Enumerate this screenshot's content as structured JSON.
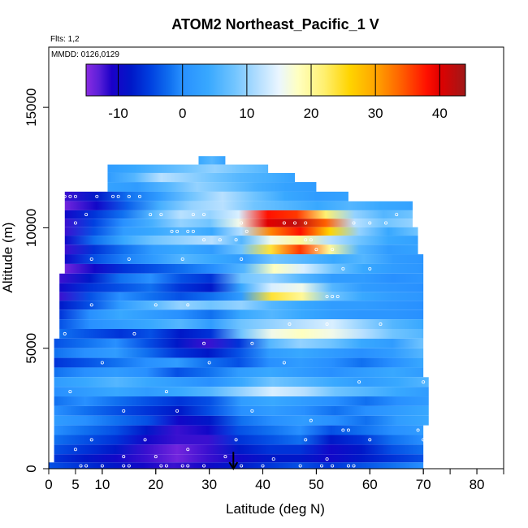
{
  "chart_data": {
    "type": "heatmap",
    "title": "ATOM2 Northeast_Pacific_1 V",
    "flights_label": "Flts: 1,2",
    "mmdd_label": "MMDD: 0126,0129",
    "xlabel": "Latitude (deg N)",
    "ylabel": "Altitude (m)",
    "xlim": [
      0,
      85
    ],
    "ylim": [
      0,
      17500
    ],
    "x_ticks": [
      0,
      5,
      10,
      20,
      30,
      40,
      50,
      60,
      70,
      80
    ],
    "x_ticks_minor": [
      0,
      10,
      20,
      30,
      40,
      50,
      60,
      70,
      75,
      80,
      85
    ],
    "y_ticks": [
      0,
      5000,
      10000,
      15000
    ],
    "colorbar": {
      "range": [
        -15,
        44
      ],
      "ticks": [
        -10,
        0,
        10,
        20,
        30,
        40
      ],
      "stops": [
        {
          "v": -15,
          "c": "#8a2be2"
        },
        {
          "v": -13,
          "c": "#5a1fd8"
        },
        {
          "v": -11,
          "c": "#1a00c8"
        },
        {
          "v": -8,
          "c": "#0018c8"
        },
        {
          "v": -5,
          "c": "#0040e0"
        },
        {
          "v": -2,
          "c": "#1070f0"
        },
        {
          "v": 0,
          "c": "#2890ff"
        },
        {
          "v": 4,
          "c": "#38a8ff"
        },
        {
          "v": 8,
          "c": "#70c4ff"
        },
        {
          "v": 12,
          "c": "#b8e0ff"
        },
        {
          "v": 15,
          "c": "#eaf6ff"
        },
        {
          "v": 18,
          "c": "#ffffc0"
        },
        {
          "v": 22,
          "c": "#fff070"
        },
        {
          "v": 26,
          "c": "#ffd400"
        },
        {
          "v": 30,
          "c": "#ffa500"
        },
        {
          "v": 34,
          "c": "#ff6000"
        },
        {
          "v": 38,
          "c": "#ff1000"
        },
        {
          "v": 40,
          "c": "#e00000"
        },
        {
          "v": 44,
          "c": "#a01818"
        }
      ]
    },
    "layers": [
      {
        "alt": 12800,
        "lat0": 28,
        "lat1": 33,
        "v": [
          4,
          6,
          3
        ]
      },
      {
        "alt": 12450,
        "lat0": 11,
        "lat1": 41,
        "v": [
          2,
          4,
          6,
          8,
          10,
          8,
          6
        ]
      },
      {
        "alt": 12100,
        "lat0": 11,
        "lat1": 46,
        "v": [
          2,
          6,
          12,
          10,
          8,
          6,
          5,
          3
        ]
      },
      {
        "alt": 11700,
        "lat0": 11,
        "lat1": 50,
        "v": [
          3,
          2,
          6,
          10,
          8,
          5,
          3,
          2
        ]
      },
      {
        "alt": 11300,
        "lat0": 3,
        "lat1": 56,
        "v": [
          -12,
          -8,
          -2,
          2,
          8,
          12,
          8,
          4,
          2,
          3
        ]
      },
      {
        "alt": 10900,
        "lat0": 3,
        "lat1": 68,
        "v": [
          -14,
          -10,
          -3,
          5,
          10,
          12,
          8,
          6,
          4,
          6,
          4,
          3
        ]
      },
      {
        "alt": 10550,
        "lat0": 3,
        "lat1": 68,
        "v": [
          -10,
          -6,
          -2,
          6,
          12,
          10,
          14,
          38,
          36,
          22,
          10,
          6,
          8
        ]
      },
      {
        "alt": 10200,
        "lat0": 3,
        "lat1": 68,
        "v": [
          -12,
          -5,
          0,
          5,
          10,
          8,
          16,
          40,
          42,
          34,
          12,
          8,
          10
        ]
      },
      {
        "alt": 9850,
        "lat0": 3,
        "lat1": 69,
        "v": [
          -12,
          -4,
          2,
          4,
          6,
          4,
          12,
          32,
          38,
          26,
          10,
          4,
          8
        ]
      },
      {
        "alt": 9500,
        "lat0": 3,
        "lat1": 69,
        "v": [
          -10,
          -2,
          4,
          8,
          10,
          12,
          6,
          16,
          20,
          12,
          8,
          4,
          3
        ]
      },
      {
        "alt": 9100,
        "lat0": 3,
        "lat1": 69,
        "v": [
          -12,
          -6,
          -2,
          2,
          4,
          2,
          8,
          24,
          36,
          20,
          6,
          2,
          3
        ]
      },
      {
        "alt": 8700,
        "lat0": 3,
        "lat1": 70,
        "v": [
          -10,
          -4,
          -1,
          2,
          6,
          4,
          2,
          8,
          6,
          4,
          6,
          2,
          1
        ]
      },
      {
        "alt": 8300,
        "lat0": 3,
        "lat1": 70,
        "v": [
          -14,
          -10,
          -6,
          -4,
          -2,
          0,
          6,
          18,
          14,
          8,
          4,
          2,
          1
        ]
      },
      {
        "alt": 7900,
        "lat0": 2,
        "lat1": 70,
        "v": [
          -12,
          -8,
          -2,
          0,
          -4,
          -6,
          8,
          10,
          6,
          2,
          2,
          0,
          1
        ]
      },
      {
        "alt": 7500,
        "lat0": 2,
        "lat1": 70,
        "v": [
          -10,
          -6,
          -4,
          -2,
          -6,
          -8,
          4,
          14,
          16,
          6,
          2,
          1,
          0
        ]
      },
      {
        "alt": 7150,
        "lat0": 2,
        "lat1": 70,
        "v": [
          -12,
          -4,
          0,
          -2,
          -4,
          -2,
          2,
          24,
          20,
          8,
          4,
          2,
          1
        ]
      },
      {
        "alt": 6800,
        "lat0": 2,
        "lat1": 70,
        "v": [
          -8,
          -4,
          2,
          6,
          10,
          8,
          10,
          6,
          4,
          2,
          2,
          1,
          0
        ]
      },
      {
        "alt": 6400,
        "lat0": 2,
        "lat1": 70,
        "v": [
          -6,
          0,
          4,
          2,
          0,
          -2,
          4,
          6,
          4,
          2,
          1,
          1,
          0
        ]
      },
      {
        "alt": 6000,
        "lat0": 2,
        "lat1": 70,
        "v": [
          -4,
          0,
          2,
          4,
          6,
          2,
          8,
          10,
          12,
          14,
          10,
          6,
          4
        ]
      },
      {
        "alt": 5600,
        "lat0": 2,
        "lat1": 70,
        "v": [
          -2,
          -4,
          -6,
          -4,
          -8,
          -6,
          8,
          16,
          18,
          16,
          12,
          8,
          6
        ]
      },
      {
        "alt": 5200,
        "lat0": 1,
        "lat1": 70,
        "v": [
          -4,
          -2,
          0,
          -4,
          -8,
          -12,
          -6,
          6,
          10,
          8,
          4,
          2,
          8
        ]
      },
      {
        "alt": 4800,
        "lat0": 1,
        "lat1": 70,
        "v": [
          -2,
          0,
          2,
          -2,
          -6,
          -8,
          -4,
          2,
          4,
          2,
          0,
          2,
          6
        ]
      },
      {
        "alt": 4400,
        "lat0": 1,
        "lat1": 70,
        "v": [
          -6,
          -4,
          -2,
          0,
          2,
          -2,
          -4,
          0,
          2,
          0,
          -2,
          0,
          4
        ]
      },
      {
        "alt": 4000,
        "lat0": 1,
        "lat1": 70,
        "v": [
          -2,
          0,
          2,
          0,
          -4,
          -2,
          2,
          4,
          2,
          0,
          2,
          4,
          2
        ]
      },
      {
        "alt": 3600,
        "lat0": 1,
        "lat1": 71,
        "v": [
          2,
          4,
          6,
          4,
          2,
          0,
          4,
          8,
          6,
          4,
          2,
          4,
          6
        ]
      },
      {
        "alt": 3200,
        "lat0": 1,
        "lat1": 71,
        "v": [
          0,
          2,
          4,
          2,
          4,
          6,
          10,
          14,
          12,
          8,
          6,
          4,
          2
        ]
      },
      {
        "alt": 2800,
        "lat0": 1,
        "lat1": 71,
        "v": [
          -2,
          0,
          -2,
          -4,
          -6,
          -4,
          2,
          4,
          2,
          0,
          -2,
          0,
          2
        ]
      },
      {
        "alt": 2400,
        "lat0": 1,
        "lat1": 71,
        "v": [
          0,
          -2,
          -4,
          -6,
          -8,
          -4,
          0,
          2,
          0,
          -2,
          0,
          2,
          4
        ]
      },
      {
        "alt": 2000,
        "lat0": 1,
        "lat1": 71,
        "v": [
          2,
          0,
          -2,
          -4,
          -10,
          -8,
          -2,
          0,
          2,
          0,
          -2,
          2,
          4
        ]
      },
      {
        "alt": 1600,
        "lat0": 1,
        "lat1": 70,
        "v": [
          0,
          -2,
          -4,
          -8,
          -12,
          -10,
          -4,
          -2,
          0,
          -4,
          -2,
          0,
          2
        ]
      },
      {
        "alt": 1200,
        "lat0": 1,
        "lat1": 70,
        "v": [
          -2,
          -4,
          -6,
          -10,
          -12,
          -12,
          -6,
          -4,
          -2,
          -8,
          -6,
          -2,
          0
        ]
      },
      {
        "alt": 800,
        "lat0": 1,
        "lat1": 70,
        "v": [
          -4,
          -6,
          -8,
          -12,
          -14,
          -12,
          -8,
          -6,
          -6,
          -10,
          -8,
          -4,
          -2
        ]
      },
      {
        "alt": 400,
        "lat0": 1,
        "lat1": 70,
        "v": [
          -6,
          -8,
          -10,
          -12,
          -14,
          -12,
          -10,
          -8,
          -8,
          -10,
          -8,
          -6,
          -4
        ]
      },
      {
        "alt": 120,
        "lat0": 0,
        "lat1": 70,
        "v": [
          -4,
          -6,
          -8,
          -10,
          -12,
          -10,
          -8,
          -6,
          -4,
          -6,
          -4,
          -2,
          0
        ]
      }
    ],
    "sample_points": [
      [
        3,
        11300
      ],
      [
        4,
        11300
      ],
      [
        5,
        11300
      ],
      [
        9,
        11300
      ],
      [
        12,
        11300
      ],
      [
        13,
        11300
      ],
      [
        15,
        11300
      ],
      [
        17,
        11300
      ],
      [
        5,
        10200
      ],
      [
        7,
        10550
      ],
      [
        19,
        10550
      ],
      [
        21,
        10550
      ],
      [
        27,
        10550
      ],
      [
        29,
        10550
      ],
      [
        36,
        10200
      ],
      [
        37,
        9850
      ],
      [
        44,
        10200
      ],
      [
        46,
        10200
      ],
      [
        48,
        10200
      ],
      [
        57,
        10200
      ],
      [
        60,
        10200
      ],
      [
        63,
        10200
      ],
      [
        65,
        10550
      ],
      [
        23,
        9850
      ],
      [
        24,
        9850
      ],
      [
        26,
        9850
      ],
      [
        27,
        9850
      ],
      [
        29,
        9500
      ],
      [
        32,
        9500
      ],
      [
        35,
        9500
      ],
      [
        48,
        9500
      ],
      [
        49,
        9500
      ],
      [
        50,
        9100
      ],
      [
        53,
        9100
      ],
      [
        8,
        8700
      ],
      [
        15,
        8700
      ],
      [
        25,
        8700
      ],
      [
        36,
        8700
      ],
      [
        55,
        8300
      ],
      [
        60,
        8300
      ],
      [
        52,
        7150
      ],
      [
        53,
        7150
      ],
      [
        54,
        7150
      ],
      [
        8,
        6800
      ],
      [
        20,
        6800
      ],
      [
        26,
        6800
      ],
      [
        45,
        6000
      ],
      [
        52,
        6000
      ],
      [
        62,
        6000
      ],
      [
        3,
        5600
      ],
      [
        16,
        5600
      ],
      [
        29,
        5200
      ],
      [
        38,
        5200
      ],
      [
        10,
        4400
      ],
      [
        30,
        4400
      ],
      [
        44,
        4400
      ],
      [
        58,
        3600
      ],
      [
        70,
        3600
      ],
      [
        4,
        3200
      ],
      [
        22,
        3200
      ],
      [
        14,
        2400
      ],
      [
        24,
        2400
      ],
      [
        38,
        2400
      ],
      [
        49,
        2000
      ],
      [
        55,
        1600
      ],
      [
        56,
        1600
      ],
      [
        69,
        1600
      ],
      [
        8,
        1200
      ],
      [
        18,
        1200
      ],
      [
        35,
        1200
      ],
      [
        48,
        1200
      ],
      [
        60,
        1200
      ],
      [
        70,
        1200
      ],
      [
        5,
        800
      ],
      [
        14,
        500
      ],
      [
        20,
        500
      ],
      [
        26,
        800
      ],
      [
        33,
        500
      ],
      [
        42,
        400
      ],
      [
        52,
        400
      ],
      [
        6,
        120
      ],
      [
        7,
        120
      ],
      [
        10,
        120
      ],
      [
        14,
        120
      ],
      [
        15,
        120
      ],
      [
        21,
        120
      ],
      [
        22,
        120
      ],
      [
        25,
        120
      ],
      [
        26,
        120
      ],
      [
        29,
        120
      ],
      [
        36,
        120
      ],
      [
        40,
        120
      ],
      [
        47,
        120
      ],
      [
        51,
        120
      ],
      [
        53,
        120
      ],
      [
        56,
        120
      ],
      [
        57,
        120
      ]
    ],
    "arrow": {
      "lat": 34.5,
      "alt_top": 700,
      "alt_bottom": 0
    }
  }
}
